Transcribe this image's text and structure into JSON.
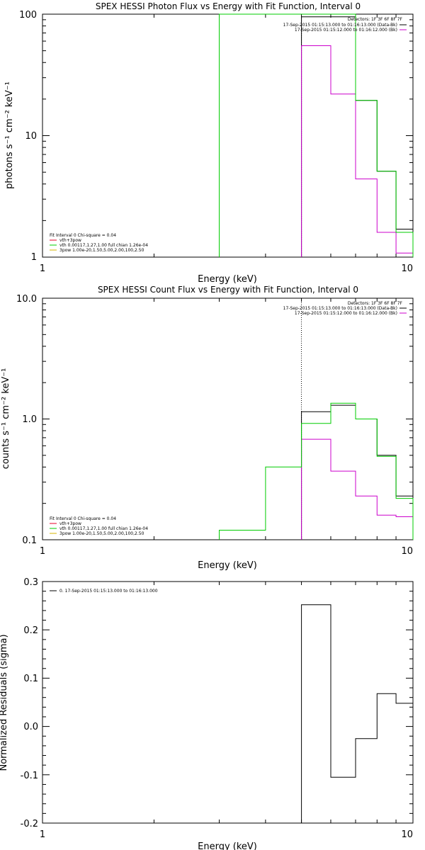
{
  "chart_data": [
    {
      "type": "line",
      "title": "SPEX HESSI Photon Flux vs Energy with Fit Function, Interval 0",
      "xlabel": "Energy (keV)",
      "ylabel": "photons s⁻¹ cm⁻² keV⁻¹",
      "xscale": "log",
      "yscale": "log",
      "xlim": [
        1,
        10
      ],
      "ylim": [
        1,
        100
      ],
      "xticks": [
        "1",
        "10"
      ],
      "yticks": [
        "1",
        "10",
        "100"
      ],
      "header_lines": [
        "Detectors: 1F 3F 6F 8F 7F",
        "17-Sep-2015 01:15:13.000 to 01:16:13.000 (Data-Bk)",
        "17-Sep-2015 01:15:12.000 to 01:16:12.000 (Bk)"
      ],
      "legend_title": "Fit Interval 0   Chi-square = 0.04",
      "legend": [
        {
          "label": "vth+3pow",
          "color": "#e8002a"
        },
        {
          "label": "vth 0.00117,1.27,1.00  full chian 1.26e-04",
          "color": "#00cc00"
        },
        {
          "label": "3pow 1.00e-20,1.50,5.00,2.00,100,2.50",
          "color": "#d6b400"
        }
      ],
      "fit_start_keV": 5.0,
      "series": [
        {
          "color": "#000000",
          "edges": [
            5.0,
            6.0,
            7.0,
            8.0,
            9.0,
            10.0
          ],
          "values": [
            95,
            95,
            19.5,
            5.1,
            1.7
          ]
        },
        {
          "color": "#cc00cc",
          "edges": [
            5.0,
            6.0,
            7.0,
            8.0,
            9.0,
            10.0
          ],
          "values": [
            55,
            22,
            4.4,
            1.6,
            1.08
          ]
        },
        {
          "color": "#00cc00",
          "edges": [
            3.0,
            5.0,
            6.0,
            7.0,
            8.0,
            9.0,
            10.0
          ],
          "values": [
            100,
            100,
            100,
            19.5,
            5.1,
            1.6
          ]
        }
      ]
    },
    {
      "type": "line",
      "title": "SPEX HESSI Count Flux vs Energy with Fit Function, Interval 0",
      "xlabel": "Energy (keV)",
      "ylabel": "counts s⁻¹ cm⁻² keV⁻¹",
      "xscale": "log",
      "yscale": "log",
      "xlim": [
        1,
        10
      ],
      "ylim": [
        0.1,
        10
      ],
      "xticks": [
        "1",
        "10"
      ],
      "yticks": [
        "0.1",
        "1.0",
        "10.0"
      ],
      "header_lines": [
        "Detectors: 1F 3F 6F 8F 7F",
        "17-Sep-2015 01:15:13.000 to 01:16:13.000 (Data-Bk)",
        "17-Sep-2015 01:15:12.000 to 01:16:12.000 (Bk)"
      ],
      "legend_title": "Fit Interval 0   Chi-square = 0.04",
      "legend": [
        {
          "label": "vth+3pow",
          "color": "#e8002a"
        },
        {
          "label": "vth 0.00117,1.27,1.00  full chian 1.26e-04",
          "color": "#00cc00"
        },
        {
          "label": "3pow 1.00e-20,1.50,5.00,2.00,100,2.50",
          "color": "#d6b400"
        }
      ],
      "fit_start_keV": 5.0,
      "series": [
        {
          "color": "#000000",
          "edges": [
            5.0,
            6.0,
            7.0,
            8.0,
            9.0,
            10.0
          ],
          "values": [
            1.15,
            1.3,
            1.0,
            0.5,
            0.23
          ]
        },
        {
          "color": "#cc00cc",
          "edges": [
            5.0,
            6.0,
            7.0,
            8.0,
            9.0,
            10.0
          ],
          "values": [
            0.68,
            0.37,
            0.23,
            0.16,
            0.155
          ]
        },
        {
          "color": "#00cc00",
          "edges": [
            3.0,
            4.0,
            5.0,
            6.0,
            7.0,
            8.0,
            9.0,
            10.0
          ],
          "values": [
            0.12,
            0.4,
            0.92,
            1.35,
            1.0,
            0.49,
            0.22
          ]
        }
      ]
    },
    {
      "type": "line",
      "title": "",
      "xlabel": "Energy (keV)",
      "ylabel": "Normalized Residuals (sigma)",
      "xscale": "log",
      "yscale": "linear",
      "xlim": [
        1,
        10
      ],
      "ylim": [
        -0.2,
        0.3
      ],
      "xticks": [
        "1",
        "10"
      ],
      "yticks": [
        "-0.2",
        "-0.1",
        "0.0",
        "0.1",
        "0.2",
        "0.3"
      ],
      "legend": [
        {
          "label": "0. 17-Sep-2015 01:15:13.000 to 01:16:13.000",
          "color": "#000000"
        }
      ],
      "series": [
        {
          "color": "#000000",
          "edges": [
            5.0,
            6.0,
            7.0,
            8.0,
            9.0,
            10.0
          ],
          "values": [
            0.252,
            -0.105,
            -0.025,
            0.068,
            0.048
          ]
        }
      ]
    }
  ]
}
